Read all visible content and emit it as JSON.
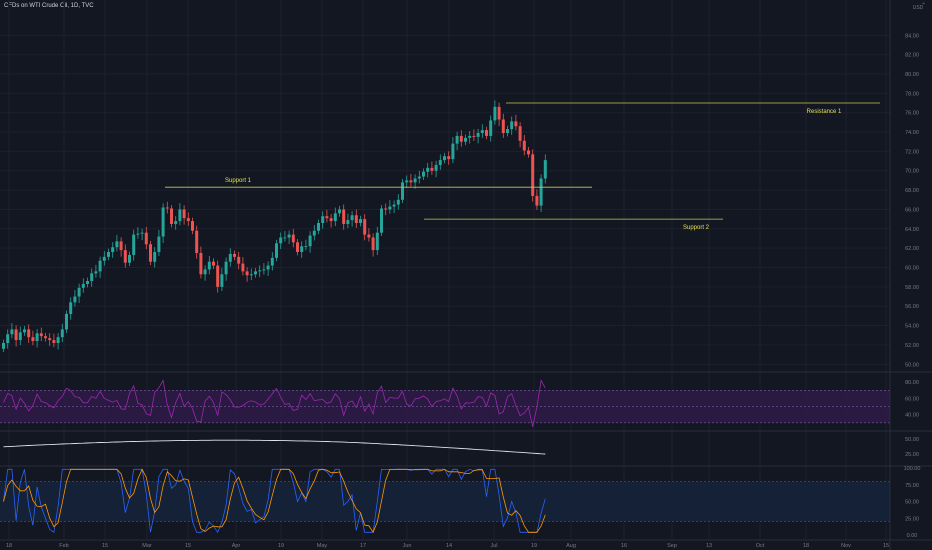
{
  "header": {
    "title": "CFDs on WTI Crude Oil, 1D, TVC",
    "currency": "USD",
    "menu_icon": "chevron-up-icon"
  },
  "colors": {
    "background": "#131722",
    "up": "#26a69a",
    "down": "#ef5350",
    "levels": "#c8c84a",
    "level_text": "#e5e04a",
    "rsi": "#9c27b0",
    "rsi_band": "#311b4a",
    "adx": "#e0e3eb",
    "stoch_k": "#2962ff",
    "stoch_d": "#ff9800",
    "stoch_band": "#152238",
    "axis_text": "#787b86",
    "grid": "#1c2030"
  },
  "chart_data": [
    {
      "type": "candlestick",
      "title": "CFDs on WTI Crude Oil, 1D, TVC",
      "x_ticks": [
        "18",
        "Feb",
        "15",
        "Mar",
        "15",
        "Apr",
        "19",
        "May",
        "17",
        "Jun",
        "14",
        "Jul",
        "19",
        "Aug",
        "16",
        "Sep",
        "13",
        "Oct",
        "18",
        "Nov",
        "15"
      ],
      "y_ticks": [
        "84.00",
        "82.00",
        "80.00",
        "78.00",
        "76.00",
        "74.00",
        "72.00",
        "70.00",
        "68.00",
        "66.00",
        "64.00",
        "62.00",
        "60.00",
        "58.00",
        "56.00",
        "54.00",
        "52.00",
        "50.00"
      ],
      "ylim": [
        49.2,
        86.2
      ],
      "candles_close": [
        52.2,
        53.1,
        53.6,
        52.5,
        53.3,
        53.6,
        52.8,
        52.4,
        53.2,
        52.9,
        52.7,
        52.5,
        52.2,
        52.8,
        53.6,
        55.2,
        56.4,
        57.0,
        57.9,
        58.3,
        58.6,
        59.4,
        59.6,
        60.7,
        61.1,
        61.6,
        62.1,
        62.7,
        61.8,
        60.5,
        61.3,
        63.4,
        63.5,
        63.6,
        62.4,
        60.6,
        61.6,
        63.2,
        66.2,
        66.1,
        64.5,
        64.8,
        66.0,
        65.1,
        64.8,
        63.8,
        61.5,
        59.3,
        59.8,
        60.6,
        60.2,
        58.0,
        59.3,
        60.6,
        61.4,
        61.1,
        60.4,
        59.6,
        59.2,
        59.3,
        59.6,
        59.7,
        59.8,
        60.2,
        61.0,
        62.5,
        63.1,
        63.1,
        63.4,
        62.6,
        61.6,
        62.2,
        62.2,
        63.3,
        63.8,
        64.6,
        65.3,
        65.1,
        64.8,
        65.6,
        66.0,
        64.5,
        64.9,
        65.4,
        64.6,
        65.0,
        63.4,
        63.1,
        61.8,
        63.6,
        66.1,
        66.0,
        66.3,
        66.5,
        67.0,
        68.8,
        69.0,
        68.8,
        69.2,
        69.4,
        69.9,
        70.3,
        70.0,
        70.6,
        71.1,
        71.5,
        71.2,
        72.8,
        73.6,
        73.0,
        73.4,
        73.6,
        73.5,
        73.9,
        74.2,
        73.6,
        75.2,
        76.6,
        75.3,
        73.9,
        74.3,
        75.1,
        74.6,
        73.1,
        72.1,
        71.7,
        67.4,
        66.4,
        69.2,
        71.1
      ],
      "indicators": {
        "rsi_ticks": [
          "80.00",
          "60.00",
          "40.00"
        ],
        "rsi_levels": [
          70,
          50,
          30
        ],
        "adx_ticks": [
          "50.00",
          "25.00"
        ],
        "stoch_ticks": [
          "100.00",
          "75.00",
          "50.00",
          "25.00",
          "0.00"
        ],
        "stoch_levels": [
          80,
          20
        ]
      },
      "annotations": [
        {
          "label": "Resistance 1",
          "price": 77.0
        },
        {
          "label": "Support 1",
          "price": 68.3
        },
        {
          "label": "Support 2",
          "price": 65.0
        }
      ]
    }
  ]
}
